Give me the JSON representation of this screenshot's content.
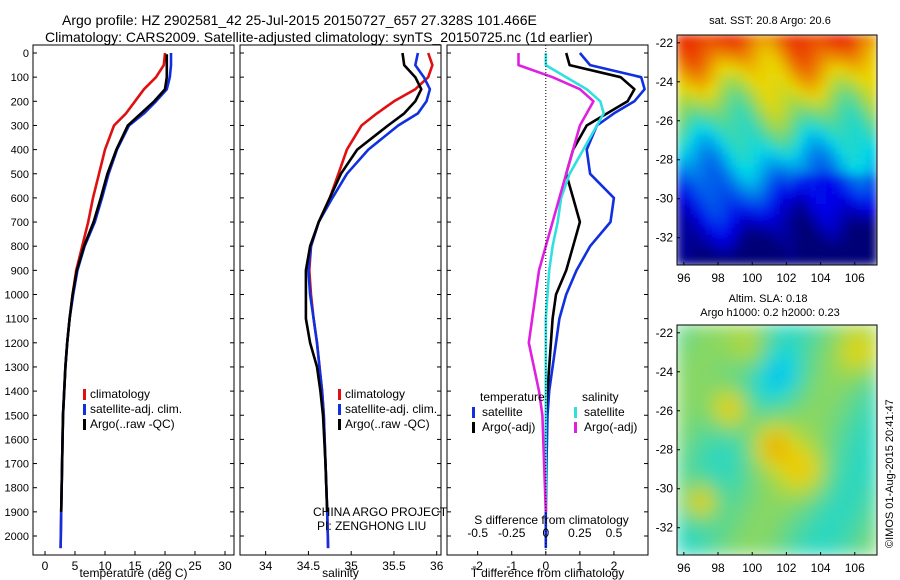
{
  "header": {
    "line1": "Argo profile: HZ 2902581_42 25-Jul-2015 20150727_657 27.328S 101.466E",
    "line2": "Climatology: CARS2009. Satellite-adjusted climatology: synTS_20150725.nc (1d earlier)"
  },
  "colors": {
    "red": "#e01010",
    "blue": "#1030e0",
    "black": "#000000",
    "cyan": "#30e0e0",
    "magenta": "#e020e0"
  },
  "chart_data": [
    {
      "type": "line",
      "id": "temperature",
      "xlabel": "temperature (deg C)",
      "ylabel": "",
      "xlim": [
        -2,
        31.5
      ],
      "ylim": [
        2070,
        0
      ],
      "xticks": [
        "0",
        "5",
        "10",
        "15",
        "20",
        "25",
        "30"
      ],
      "yticks": [
        "0",
        "100",
        "200",
        "300",
        "400",
        "500",
        "600",
        "700",
        "800",
        "900",
        "1000",
        "1100",
        "1200",
        "1300",
        "1400",
        "1500",
        "1600",
        "1700",
        "1800",
        "1900",
        "2000"
      ],
      "legend": [
        "climatology",
        "satellite-adj. clim.",
        "Argo(..raw -QC)"
      ],
      "series": [
        {
          "name": "climatology",
          "color": "#e01010",
          "x": [
            20.0,
            19.8,
            18.5,
            16.5,
            15.0,
            13.5,
            11.5,
            10.0,
            9.0,
            8.0,
            7.2,
            6.2,
            5.2,
            4.6,
            4.1,
            3.7,
            3.4,
            3.2,
            3.0,
            2.85,
            2.7,
            2.6
          ],
          "y": [
            0,
            50,
            100,
            150,
            200,
            250,
            300,
            400,
            500,
            600,
            700,
            800,
            900,
            1000,
            1100,
            1200,
            1300,
            1400,
            1500,
            1700,
            1900,
            2050
          ]
        },
        {
          "name": "satellite-adj. clim.",
          "color": "#1030e0",
          "x": [
            21.0,
            21.0,
            20.8,
            20.3,
            18.5,
            16.5,
            14.0,
            12.0,
            10.6,
            9.5,
            8.3,
            6.6,
            5.4,
            4.7,
            4.1,
            3.7,
            3.4,
            3.2,
            3.0,
            2.85,
            2.7,
            2.6
          ],
          "y": [
            0,
            50,
            100,
            150,
            200,
            250,
            300,
            400,
            500,
            600,
            700,
            800,
            900,
            1000,
            1100,
            1200,
            1300,
            1400,
            1500,
            1700,
            1900,
            2050
          ]
        },
        {
          "name": "Argo(..raw -QC)",
          "color": "#000000",
          "x": [
            20.3,
            20.3,
            20.3,
            20.0,
            18.2,
            16.0,
            13.8,
            11.9,
            10.4,
            9.3,
            8.1,
            6.5,
            5.3,
            4.6,
            4.1,
            3.7,
            3.4,
            3.2,
            3.0,
            2.85,
            2.7
          ],
          "y": [
            5,
            50,
            100,
            150,
            200,
            250,
            300,
            400,
            500,
            600,
            700,
            800,
            900,
            1000,
            1100,
            1200,
            1300,
            1400,
            1500,
            1700,
            1900
          ]
        }
      ]
    },
    {
      "type": "line",
      "id": "salinity",
      "xlabel": "salinity",
      "ylabel": "",
      "xlim": [
        33.7,
        36.05
      ],
      "ylim": [
        2070,
        0
      ],
      "xticks": [
        "34",
        "34.5",
        "35",
        "35.5",
        "36"
      ],
      "legend": [
        "climatology",
        "satellite-adj. clim.",
        "Argo(..raw -QC)"
      ],
      "annotation": [
        "CHINA ARGO PROJECT",
        "PI: ZENGHONG LIU"
      ],
      "series": [
        {
          "name": "climatology",
          "color": "#e01010",
          "x": [
            35.9,
            35.95,
            35.9,
            35.75,
            35.5,
            35.3,
            35.12,
            34.95,
            34.85,
            34.75,
            34.62,
            34.53,
            34.51,
            34.53,
            34.56,
            34.6,
            34.63,
            34.66,
            34.68,
            34.7,
            34.72,
            34.73
          ],
          "y": [
            0,
            50,
            100,
            150,
            200,
            250,
            300,
            400,
            500,
            600,
            700,
            800,
            900,
            1000,
            1100,
            1200,
            1300,
            1400,
            1500,
            1700,
            1900,
            2050
          ]
        },
        {
          "name": "satellite-adj. clim.",
          "color": "#1030e0",
          "x": [
            35.78,
            35.75,
            35.85,
            35.92,
            35.88,
            35.78,
            35.55,
            35.2,
            34.95,
            34.78,
            34.62,
            34.53,
            34.5,
            34.52,
            34.56,
            34.6,
            34.63,
            34.66,
            34.68,
            34.7,
            34.72,
            34.73
          ],
          "y": [
            0,
            50,
            100,
            150,
            200,
            250,
            300,
            400,
            500,
            600,
            700,
            800,
            900,
            1000,
            1100,
            1200,
            1300,
            1400,
            1500,
            1700,
            1900,
            2050
          ]
        },
        {
          "name": "Argo(..raw -QC)",
          "color": "#000000",
          "x": [
            35.6,
            35.62,
            35.75,
            35.82,
            35.75,
            35.62,
            35.43,
            35.07,
            34.88,
            34.75,
            34.62,
            34.52,
            34.47,
            34.47,
            34.47,
            34.52,
            34.6,
            34.64,
            34.67,
            34.7,
            34.72
          ],
          "y": [
            0,
            50,
            100,
            150,
            200,
            250,
            300,
            400,
            500,
            600,
            700,
            800,
            900,
            1000,
            1100,
            1200,
            1300,
            1400,
            1500,
            1700,
            1900
          ]
        }
      ]
    },
    {
      "type": "line",
      "id": "difference",
      "xlabel": "T difference from climatology",
      "xlabel_top": "S difference from climatology",
      "ylabel": "",
      "xlim": [
        -2.9,
        3.0
      ],
      "ylim": [
        2070,
        0
      ],
      "xticks": [
        "-2",
        "-1",
        "0",
        "1",
        "2"
      ],
      "xticks_top": [
        "-0.5",
        "-0.25",
        "0",
        "0.25",
        "0.5"
      ],
      "legend_groups": [
        {
          "title": "temperature",
          "items": [
            "satellite",
            "Argo(-adj)"
          ]
        },
        {
          "title": "salinity",
          "items": [
            "satellite",
            "Argo(-adj)"
          ]
        }
      ],
      "series": [
        {
          "name": "satellite (temperature)",
          "color": "#1030e0",
          "x": [
            1.0,
            1.3,
            2.8,
            2.9,
            2.6,
            2.0,
            1.5,
            1.2,
            1.3,
            2.0,
            1.9,
            1.3,
            0.9,
            0.6,
            0.4,
            0.3,
            0.2,
            0.1,
            0.05,
            0.02,
            0.0,
            0.0
          ],
          "y": [
            0,
            50,
            100,
            150,
            200,
            250,
            300,
            400,
            500,
            600,
            700,
            800,
            900,
            1000,
            1100,
            1200,
            1300,
            1400,
            1500,
            1700,
            1900,
            2050
          ]
        },
        {
          "name": "Argo(-adj) (temperature)",
          "color": "#000000",
          "x": [
            0.6,
            0.7,
            2.2,
            2.6,
            2.4,
            1.8,
            1.2,
            0.8,
            0.6,
            0.8,
            1.0,
            0.8,
            0.6,
            0.3,
            0.2,
            0.15,
            0.1,
            0.05,
            0.0,
            0.0,
            0.0
          ],
          "y": [
            0,
            50,
            100,
            150,
            200,
            250,
            300,
            400,
            500,
            600,
            700,
            800,
            900,
            1000,
            1100,
            1200,
            1300,
            1400,
            1500,
            1700,
            1900
          ]
        },
        {
          "name": "satellite (salinity)",
          "color": "#30e0e0",
          "x": [
            0.0,
            0.0,
            0.6,
            1.2,
            1.6,
            1.7,
            1.5,
            1.1,
            0.7,
            0.45,
            0.35,
            0.2,
            0.1,
            0.05,
            0.0,
            0.0,
            0.0,
            0.0,
            0.0,
            0.0,
            0.0
          ],
          "y": [
            0,
            50,
            100,
            150,
            200,
            250,
            300,
            400,
            500,
            600,
            700,
            800,
            900,
            1000,
            1100,
            1200,
            1300,
            1400,
            1500,
            1700,
            1900
          ]
        },
        {
          "name": "Argo(-adj) (salinity)",
          "color": "#e020e0",
          "x": [
            -0.8,
            -0.8,
            0.2,
            1.0,
            1.4,
            1.2,
            1.0,
            0.8,
            0.6,
            0.4,
            0.2,
            0.0,
            -0.2,
            -0.3,
            -0.4,
            -0.5,
            -0.35,
            -0.2,
            -0.1,
            -0.05,
            0.0
          ],
          "y": [
            0,
            50,
            100,
            150,
            200,
            250,
            300,
            400,
            500,
            600,
            700,
            800,
            900,
            1000,
            1100,
            1200,
            1300,
            1400,
            1500,
            1700,
            1900
          ]
        }
      ]
    },
    {
      "type": "heatmap",
      "id": "sst_map",
      "title": "sat. SST: 20.8  Argo: 20.6",
      "xlim": [
        95.6,
        107.3
      ],
      "ylim": [
        -33.4,
        -21.6
      ],
      "xticks": [
        "96",
        "98",
        "100",
        "102",
        "104",
        "106"
      ],
      "yticks": [
        "-22",
        "-24",
        "-26",
        "-28",
        "-30",
        "-32"
      ],
      "colormap": "jet"
    },
    {
      "type": "heatmap",
      "id": "sla_map",
      "title": [
        "Altim. SLA: 0.18",
        "Argo h1000: 0.2  h2000: 0.23"
      ],
      "xlim": [
        95.6,
        107.3
      ],
      "ylim": [
        -33.4,
        -21.6
      ],
      "xticks": [
        "96",
        "98",
        "100",
        "102",
        "104",
        "106"
      ],
      "yticks": [
        "-22",
        "-24",
        "-26",
        "-28",
        "-30",
        "-32"
      ],
      "colormap": "jet"
    }
  ],
  "footer": {
    "stamp": "©IMOS 01-Aug-2015 20:41:47"
  }
}
